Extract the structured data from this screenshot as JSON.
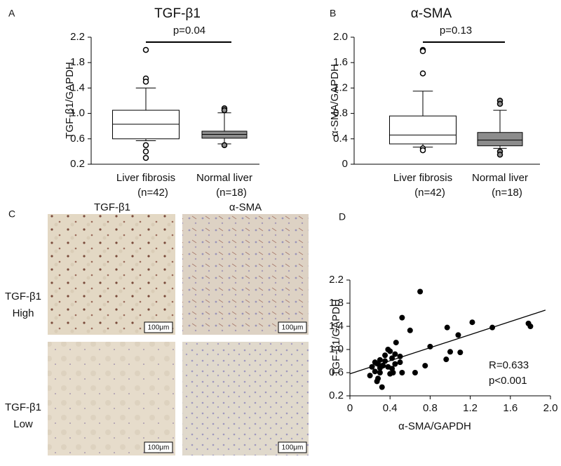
{
  "chart_data": [
    {
      "type": "box",
      "panel_label": "A",
      "title": "TGF-β1",
      "y_label": "TGF-β1/GAPDH",
      "categories": [
        "Liver fibrosis",
        "Normal liver"
      ],
      "n_labels": [
        "(n=42)",
        "(n=18)"
      ],
      "colors": [
        "#ffffff",
        "#8c8c8c"
      ],
      "boxes": [
        {
          "whislo": 0.57,
          "q1": 0.6,
          "med": 0.83,
          "q3": 1.05,
          "whishi": 1.4,
          "fliers": [
            2.0,
            1.55,
            1.5,
            0.5,
            0.4,
            0.3
          ]
        },
        {
          "whislo": 0.52,
          "q1": 0.61,
          "med": 0.67,
          "q3": 0.72,
          "whishi": 1.01,
          "fliers": [
            1.08,
            1.05,
            0.5
          ]
        }
      ],
      "annotation": "p=0.04",
      "ylim": [
        0.2,
        2.2
      ],
      "yticks": [
        0.2,
        0.6,
        {
          "value": 1,
          "label": "1.0"
        },
        1.4,
        1.8,
        2.2
      ]
    },
    {
      "type": "box",
      "panel_label": "B",
      "title": "α-SMA",
      "y_label": "α-SMA/GAPDH",
      "categories": [
        "Liver fibrosis",
        "Normal liver"
      ],
      "n_labels": [
        "(n=42)",
        "(n=18)"
      ],
      "colors": [
        "#ffffff",
        "#8c8c8c"
      ],
      "boxes": [
        {
          "whislo": 0.27,
          "q1": 0.32,
          "med": 0.46,
          "q3": 0.76,
          "whishi": 1.15,
          "fliers": [
            1.8,
            1.78,
            1.43,
            0.25,
            0.22
          ]
        },
        {
          "whislo": 0.25,
          "q1": 0.29,
          "med": 0.38,
          "q3": 0.5,
          "whishi": 0.85,
          "fliers": [
            1.0,
            0.95,
            0.2,
            0.15
          ]
        }
      ],
      "annotation": "p=0.13",
      "ylim": [
        0,
        2
      ],
      "yticks": [
        0,
        0.4,
        0.8,
        1.2,
        1.6,
        {
          "value": 2,
          "label": "2.0"
        }
      ]
    },
    {
      "type": "scatter",
      "panel_label": "D",
      "x_label": "α-SMA/GAPDH",
      "y_label": "TGF-β1/GAPDH",
      "color": "#000000",
      "x": [
        0.7,
        0.52,
        0.6,
        0.46,
        1.78,
        1.8,
        1.42,
        1.22,
        0.97,
        1.08,
        0.8,
        1.0,
        1.1,
        0.96,
        0.75,
        0.65,
        0.52,
        0.4,
        0.43,
        0.38,
        0.4,
        0.45,
        0.5,
        0.42,
        0.35,
        0.3,
        0.28,
        0.25,
        0.22,
        0.25,
        0.3,
        0.33,
        0.2,
        0.28,
        0.32,
        0.27,
        0.45,
        0.38,
        0.5,
        0.35,
        0.42,
        0.3
      ],
      "y": [
        2.0,
        1.55,
        1.33,
        1.12,
        1.45,
        1.4,
        1.38,
        1.47,
        1.38,
        1.25,
        1.05,
        0.96,
        0.95,
        0.83,
        0.72,
        0.6,
        0.6,
        0.58,
        0.6,
        1.0,
        0.97,
        0.92,
        0.88,
        0.85,
        0.8,
        0.82,
        0.75,
        0.78,
        0.7,
        0.62,
        0.68,
        0.72,
        0.55,
        0.5,
        0.35,
        0.45,
        0.75,
        0.7,
        0.78,
        0.9,
        0.67,
        0.6
      ],
      "trend_line": {
        "x": [
          0,
          1.95
        ],
        "y": [
          0.58,
          1.68
        ]
      },
      "annotations": [
        "R=0.633",
        "p<0.001"
      ],
      "xlim": [
        0,
        2
      ],
      "xticks": [
        0,
        0.4,
        0.8,
        1.2,
        1.6,
        {
          "value": 2,
          "label": "2.0"
        }
      ],
      "ylim": [
        0.2,
        2.2
      ],
      "yticks": [
        0.2,
        0.6,
        {
          "value": 1,
          "label": "1.0"
        },
        1.4,
        1.8,
        2.2
      ]
    }
  ],
  "micrographs": {
    "panel_label": "C",
    "columns": [
      "TGF-β1",
      "α-SMA"
    ],
    "rows": [
      [
        "TGF-β1",
        "High"
      ],
      [
        "TGF-β1",
        "Low"
      ]
    ],
    "scale_bar": "100μm"
  }
}
